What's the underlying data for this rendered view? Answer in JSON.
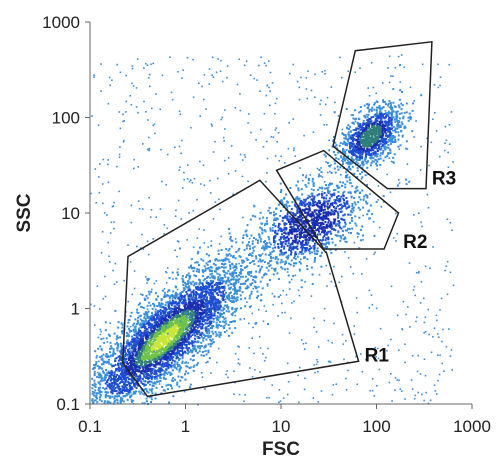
{
  "chart_data": {
    "type": "scatter",
    "subtype": "flow-cytometry-density",
    "xlabel": "FSC",
    "ylabel": "SSC",
    "xscale": "log",
    "yscale": "log",
    "xlim": [
      0.1,
      1000
    ],
    "ylim": [
      0.1,
      1000
    ],
    "x_ticks": [
      0.1,
      1,
      10,
      100,
      1000
    ],
    "x_tick_labels": [
      "0.1",
      "1",
      "10",
      "100",
      "1000"
    ],
    "y_ticks": [
      0.1,
      1,
      10,
      100,
      1000
    ],
    "y_tick_labels": [
      "0.1",
      "1",
      "10",
      "100",
      "1000"
    ],
    "grid": false,
    "colormap": [
      "#3a8fd8",
      "#1f4fd0",
      "#1a2fb0",
      "#2e7f7a",
      "#6fc14a",
      "#c8e63a"
    ],
    "clusters": [
      {
        "gate": "R1",
        "center": [
          0.6,
          0.5
        ],
        "peak_density": "high"
      },
      {
        "gate": "R2",
        "center": [
          20,
          8
        ],
        "peak_density": "low"
      },
      {
        "gate": "R3",
        "center": [
          85,
          65
        ],
        "peak_density": "medium"
      }
    ],
    "gates": [
      {
        "name": "R1",
        "vertices": [
          [
            0.22,
            0.27
          ],
          [
            0.25,
            3.5
          ],
          [
            6,
            22
          ],
          [
            30,
            3.8
          ],
          [
            65,
            0.28
          ],
          [
            0.4,
            0.12
          ]
        ],
        "label_at": [
          75,
          0.28
        ]
      },
      {
        "name": "R2",
        "vertices": [
          [
            9,
            28
          ],
          [
            28,
            45
          ],
          [
            170,
            10
          ],
          [
            120,
            4.2
          ],
          [
            28,
            4.2
          ]
        ],
        "label_at": [
          190,
          4.3
        ]
      },
      {
        "name": "R3",
        "vertices": [
          [
            35,
            50
          ],
          [
            60,
            500
          ],
          [
            380,
            620
          ],
          [
            330,
            18
          ],
          [
            130,
            18
          ]
        ],
        "label_at": [
          380,
          20
        ]
      }
    ]
  }
}
